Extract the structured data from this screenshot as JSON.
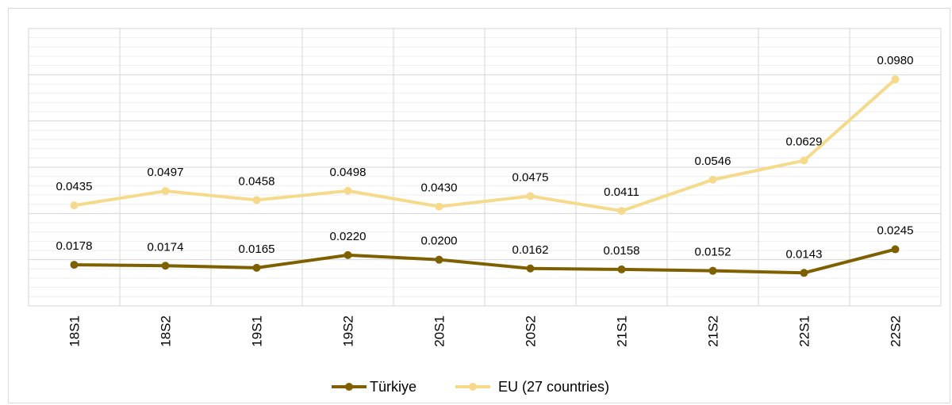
{
  "chart_data": {
    "type": "line",
    "title": "",
    "xlabel": "",
    "ylabel": "",
    "categories": [
      "18S1",
      "18S2",
      "19S1",
      "19S2",
      "20S1",
      "20S2",
      "21S1",
      "21S2",
      "22S1",
      "22S2"
    ],
    "ylim": [
      0,
      0.12
    ],
    "grid": true,
    "legend_position": "bottom",
    "series": [
      {
        "name": "Türkiye",
        "color": "#7f6000",
        "values": [
          0.0178,
          0.0174,
          0.0165,
          0.022,
          0.02,
          0.0162,
          0.0158,
          0.0152,
          0.0143,
          0.0245
        ],
        "labels": [
          "0.0178",
          "0.0174",
          "0.0165",
          "0.0220",
          "0.0200",
          "0.0162",
          "0.0158",
          "0.0152",
          "0.0143",
          "0.0245"
        ]
      },
      {
        "name": "EU (27 countries)",
        "color": "#f6da8c",
        "values": [
          0.0435,
          0.0497,
          0.0458,
          0.0498,
          0.043,
          0.0475,
          0.0411,
          0.0546,
          0.0629,
          0.098
        ],
        "labels": [
          "0.0435",
          "0.0497",
          "0.0458",
          "0.0498",
          "0.0430",
          "0.0475",
          "0.0411",
          "0.0546",
          "0.0629",
          "0.0980"
        ]
      }
    ]
  }
}
